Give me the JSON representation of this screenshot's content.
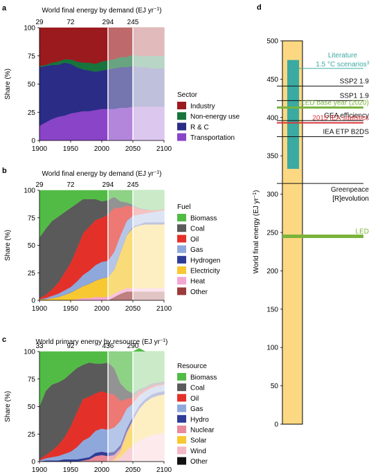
{
  "chart_data": [
    {
      "id": "a",
      "type": "area",
      "panel_label": "a",
      "title": "World final energy by demand (EJ yr",
      "title_sup": "−1",
      "title_tail": ")",
      "ylabel": "Share (%)",
      "xlim": [
        1900,
        2100
      ],
      "ylim": [
        0,
        100
      ],
      "xticks": [
        1900,
        1950,
        2000,
        2050,
        2100
      ],
      "yticks": [
        0,
        25,
        50,
        75,
        100
      ],
      "top_labels": [
        {
          "x": 1900,
          "text": "29"
        },
        {
          "x": 1950,
          "text": "72"
        },
        {
          "x": 2010,
          "text": "294"
        },
        {
          "x": 2050,
          "text": "245"
        }
      ],
      "legend_title": "Sector",
      "x": [
        1900,
        1910,
        1920,
        1930,
        1940,
        1950,
        1960,
        1970,
        1980,
        1990,
        2000,
        2010,
        2020,
        2030,
        2040,
        2050,
        2060,
        2070,
        2080,
        2090,
        2100
      ],
      "series": [
        {
          "name": "Transportation",
          "color": "#8a44c8",
          "values": [
            13,
            16,
            19,
            21,
            22,
            24,
            25,
            26,
            26,
            27,
            28,
            28,
            28,
            29,
            29,
            30,
            30,
            30,
            30,
            30,
            30
          ]
        },
        {
          "name": "R & C",
          "color": "#2b2c86",
          "values": [
            52,
            50,
            48,
            46,
            47,
            44,
            40,
            37,
            36,
            34,
            34,
            35,
            36,
            36,
            36,
            36,
            35,
            35,
            34,
            34,
            34
          ]
        },
        {
          "name": "Non-energy use",
          "color": "#17743c",
          "values": [
            1,
            1,
            2,
            3,
            3,
            4,
            5,
            6,
            7,
            7,
            8,
            8,
            8,
            9,
            9,
            10,
            10,
            10,
            11,
            11,
            11
          ]
        },
        {
          "name": "Industry",
          "color": "#9b1a1d",
          "values": [
            34,
            33,
            31,
            30,
            28,
            28,
            30,
            31,
            31,
            32,
            30,
            29,
            28,
            26,
            26,
            24,
            25,
            25,
            25,
            25,
            25
          ]
        }
      ]
    },
    {
      "id": "b",
      "type": "area",
      "panel_label": "b",
      "title": "World final energy by demand (EJ yr",
      "title_sup": "−1",
      "title_tail": ")",
      "ylabel": "Share (%)",
      "xlim": [
        1900,
        2100
      ],
      "ylim": [
        0,
        100
      ],
      "xticks": [
        1900,
        1950,
        2000,
        2050,
        2100
      ],
      "yticks": [
        0,
        25,
        50,
        75,
        100
      ],
      "top_labels": [
        {
          "x": 1900,
          "text": "29"
        },
        {
          "x": 1950,
          "text": "72"
        },
        {
          "x": 2010,
          "text": "294"
        },
        {
          "x": 2050,
          "text": "245"
        }
      ],
      "legend_title": "Fuel",
      "x": [
        1900,
        1910,
        1920,
        1930,
        1940,
        1950,
        1960,
        1970,
        1980,
        1990,
        2000,
        2010,
        2020,
        2030,
        2040,
        2050,
        2060,
        2070,
        2080,
        2090,
        2100
      ],
      "series": [
        {
          "name": "Other",
          "color": "#9b3b3b",
          "values": [
            0,
            0,
            0,
            0,
            0,
            0,
            0,
            0,
            0,
            0,
            0,
            0,
            3,
            6,
            8,
            8,
            8,
            8,
            8,
            8,
            8
          ]
        },
        {
          "name": "Heat",
          "color": "#f3a6d2",
          "values": [
            0,
            0,
            0,
            0,
            0,
            0,
            1,
            2,
            2,
            3,
            3,
            3,
            3,
            3,
            3,
            3,
            3,
            3,
            3,
            3,
            3
          ]
        },
        {
          "name": "Electricity",
          "color": "#f7c832",
          "values": [
            1,
            1,
            2,
            3,
            5,
            7,
            9,
            11,
            13,
            15,
            17,
            18,
            22,
            35,
            48,
            55,
            57,
            58,
            58,
            58,
            58
          ]
        },
        {
          "name": "Hydrogen",
          "color": "#2e3c97",
          "values": [
            0,
            0,
            0,
            0,
            0,
            0,
            0,
            0,
            0,
            0,
            0,
            0,
            0,
            0,
            0,
            1,
            1,
            2,
            2,
            2,
            2
          ]
        },
        {
          "name": "Gas",
          "color": "#8ea8dc",
          "values": [
            0,
            1,
            2,
            3,
            4,
            5,
            7,
            10,
            12,
            14,
            15,
            15,
            16,
            15,
            13,
            10,
            9,
            8,
            9,
            10,
            11
          ]
        },
        {
          "name": "Oil",
          "color": "#e3312a",
          "values": [
            1,
            3,
            6,
            10,
            16,
            22,
            30,
            38,
            40,
            41,
            40,
            42,
            40,
            25,
            14,
            8,
            5,
            3,
            2,
            1,
            1
          ]
        },
        {
          "name": "Coal",
          "color": "#5a5a5a",
          "values": [
            55,
            60,
            62,
            60,
            55,
            50,
            41,
            31,
            25,
            19,
            15,
            13,
            10,
            6,
            3,
            2,
            1,
            1,
            0,
            0,
            0
          ]
        },
        {
          "name": "Biomass",
          "color": "#52bb46",
          "values": [
            43,
            35,
            28,
            24,
            20,
            16,
            12,
            8,
            8,
            8,
            10,
            9,
            6,
            10,
            11,
            13,
            16,
            17,
            18,
            18,
            17
          ]
        }
      ]
    },
    {
      "id": "c",
      "type": "area",
      "panel_label": "c",
      "title": "World primary energy by resource (EJ yr",
      "title_sup": "−1",
      "title_tail": ")",
      "ylabel": "Share (%)",
      "xlim": [
        1900,
        2100
      ],
      "ylim": [
        0,
        100
      ],
      "xticks": [
        1900,
        1950,
        2000,
        2050,
        2100
      ],
      "yticks": [
        0,
        25,
        50,
        75,
        100
      ],
      "top_labels": [
        {
          "x": 1900,
          "text": "33"
        },
        {
          "x": 1950,
          "text": "92"
        },
        {
          "x": 2010,
          "text": "436"
        },
        {
          "x": 2050,
          "text": "290"
        }
      ],
      "legend_title": "Resource",
      "x": [
        1900,
        1910,
        1920,
        1930,
        1940,
        1950,
        1960,
        1970,
        1980,
        1990,
        2000,
        2010,
        2020,
        2030,
        2040,
        2050,
        2060,
        2070,
        2080,
        2090,
        2100
      ],
      "series": [
        {
          "name": "Other",
          "color": "#111111",
          "values": [
            0,
            0,
            0,
            0,
            0,
            0,
            0,
            0,
            0,
            0,
            0,
            0,
            0,
            0,
            0,
            0,
            0,
            0,
            0,
            0,
            0
          ]
        },
        {
          "name": "Wind",
          "color": "#f4b7c4",
          "values": [
            0,
            0,
            0,
            0,
            0,
            0,
            0,
            0,
            0,
            0,
            0,
            0,
            1,
            4,
            10,
            15,
            19,
            22,
            24,
            25,
            26
          ]
        },
        {
          "name": "Solar",
          "color": "#f7c832",
          "values": [
            0,
            0,
            0,
            0,
            0,
            0,
            0,
            0,
            0,
            0,
            0,
            0,
            1,
            5,
            15,
            22,
            28,
            32,
            34,
            35,
            35
          ]
        },
        {
          "name": "Nuclear",
          "color": "#e88a99",
          "values": [
            0,
            0,
            0,
            0,
            0,
            0,
            0,
            1,
            2,
            5,
            6,
            5,
            4,
            3,
            2,
            1,
            1,
            0,
            0,
            0,
            0
          ]
        },
        {
          "name": "Hydro",
          "color": "#2e3c97",
          "values": [
            0,
            1,
            1,
            1,
            2,
            2,
            2,
            2,
            2,
            3,
            3,
            3,
            3,
            3,
            3,
            3,
            3,
            3,
            3,
            3,
            3
          ]
        },
        {
          "name": "Gas",
          "color": "#8ea8dc",
          "values": [
            1,
            2,
            3,
            4,
            5,
            7,
            11,
            16,
            18,
            20,
            21,
            21,
            22,
            22,
            18,
            12,
            9,
            7,
            6,
            6,
            6
          ]
        },
        {
          "name": "Oil",
          "color": "#e3312a",
          "values": [
            1,
            3,
            6,
            10,
            15,
            23,
            32,
            38,
            37,
            34,
            34,
            33,
            30,
            18,
            9,
            5,
            3,
            2,
            2,
            1,
            1
          ]
        },
        {
          "name": "Coal",
          "color": "#5a5a5a",
          "values": [
            48,
            58,
            60,
            57,
            53,
            48,
            40,
            31,
            31,
            27,
            25,
            28,
            24,
            16,
            8,
            4,
            3,
            2,
            2,
            2,
            2
          ]
        },
        {
          "name": "Biomass",
          "color": "#52bb46",
          "values": [
            50,
            36,
            30,
            28,
            25,
            20,
            15,
            12,
            10,
            11,
            11,
            10,
            15,
            29,
            35,
            38,
            37,
            32,
            29,
            28,
            27
          ]
        }
      ]
    },
    {
      "id": "d",
      "type": "bar",
      "panel_label": "d",
      "ylabel": "World final energy (EJ yr",
      "ylabel_sup": "−1",
      "ylabel_tail": ")",
      "ylim": [
        0,
        500
      ],
      "yticks": [
        0,
        50,
        100,
        150,
        200,
        250,
        300,
        350,
        400,
        450,
        500
      ],
      "bar_range": [
        0,
        500
      ],
      "bar_color": "#fcd883",
      "literature_range": [
        333,
        475
      ],
      "literature_color": "#3aaaa2",
      "literature_label": "Literature",
      "literature_label2": "1.5 °C scenarios",
      "literature_sup": "3",
      "scenarios": [
        {
          "name": "SSP2 1.9",
          "value": 441,
          "color": "#111111",
          "label_color": "#111111",
          "width": 1
        },
        {
          "name": "SSP1 1.9",
          "value": 422,
          "color": "#111111",
          "label_color": "#111111",
          "width": 1
        },
        {
          "name": "LED base year (2020)",
          "value": 413,
          "color": "#7bb33a",
          "label_color": "#7bb33a",
          "width": 3
        },
        {
          "name": "GEA efficiency",
          "value": 396,
          "color": "#111111",
          "label_color": "#111111",
          "width": 1
        },
        {
          "name": "2015 IEA statistics",
          "value": 393,
          "color": "#d9353a",
          "label_color": "#d9353a",
          "width": 2
        },
        {
          "name": "IEA ETP B2DS",
          "value": 375,
          "color": "#111111",
          "label_color": "#111111",
          "width": 1
        },
        {
          "name": "Greenpeace",
          "value": 314,
          "color": "#111111",
          "label_color": "#111111",
          "width": 1
        },
        {
          "name": "LED",
          "value": 245,
          "color": "#7bb33a",
          "label_color": "#7bb33a",
          "width": 5
        }
      ],
      "greenpeace_line2": "[R]evolution"
    }
  ]
}
